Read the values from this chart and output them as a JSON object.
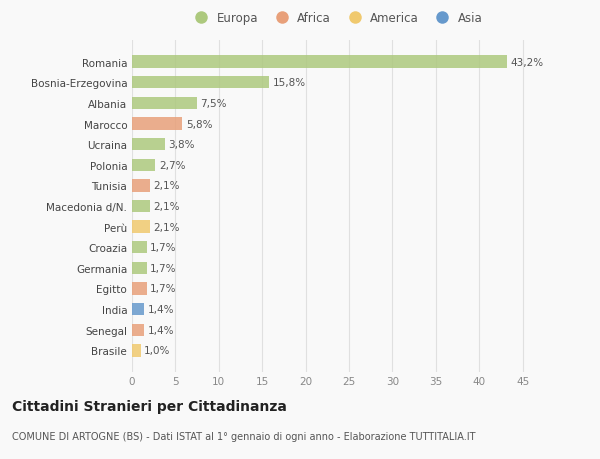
{
  "countries": [
    "Romania",
    "Bosnia-Erzegovina",
    "Albania",
    "Marocco",
    "Ucraina",
    "Polonia",
    "Tunisia",
    "Macedonia d/N.",
    "Perù",
    "Croazia",
    "Germania",
    "Egitto",
    "India",
    "Senegal",
    "Brasile"
  ],
  "values": [
    43.2,
    15.8,
    7.5,
    5.8,
    3.8,
    2.7,
    2.1,
    2.1,
    2.1,
    1.7,
    1.7,
    1.7,
    1.4,
    1.4,
    1.0
  ],
  "labels": [
    "43,2%",
    "15,8%",
    "7,5%",
    "5,8%",
    "3,8%",
    "2,7%",
    "2,1%",
    "2,1%",
    "2,1%",
    "1,7%",
    "1,7%",
    "1,7%",
    "1,4%",
    "1,4%",
    "1,0%"
  ],
  "continents": [
    "Europa",
    "Europa",
    "Europa",
    "Africa",
    "Europa",
    "Europa",
    "Africa",
    "Europa",
    "America",
    "Europa",
    "Europa",
    "Africa",
    "Asia",
    "Africa",
    "America"
  ],
  "continent_colors": {
    "Europa": "#adc97e",
    "Africa": "#e8a07a",
    "America": "#f0c96e",
    "Asia": "#6699cc"
  },
  "legend_labels": [
    "Europa",
    "Africa",
    "America",
    "Asia"
  ],
  "legend_colors": [
    "#adc97e",
    "#e8a07a",
    "#f0c96e",
    "#6699cc"
  ],
  "xlim": [
    0,
    47
  ],
  "xticks": [
    0,
    5,
    10,
    15,
    20,
    25,
    30,
    35,
    40,
    45
  ],
  "title": "Cittadini Stranieri per Cittadinanza",
  "subtitle": "COMUNE DI ARTOGNE (BS) - Dati ISTAT al 1° gennaio di ogni anno - Elaborazione TUTTITALIA.IT",
  "background_color": "#f9f9f9",
  "grid_color": "#e0e0e0",
  "bar_height": 0.6,
  "label_fontsize": 7.5,
  "tick_fontsize": 7.5,
  "title_fontsize": 10,
  "subtitle_fontsize": 7
}
